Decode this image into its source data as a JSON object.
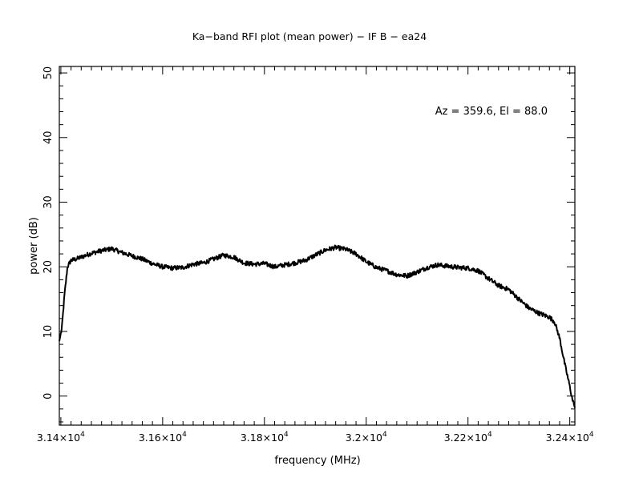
{
  "chart_data": {
    "type": "line",
    "title": "Ka−band RFI plot (mean power) − IF B − ea24",
    "annotation": "Az = 359.6, El = 88.0",
    "xlabel": "frequency (MHz)",
    "ylabel": "power (dB)",
    "xlim": [
      31397,
      32410
    ],
    "ylim": [
      -4.5,
      51
    ],
    "x_ticks": [
      {
        "value": 31400,
        "mantissa": "3.14",
        "exp": "4"
      },
      {
        "value": 31600,
        "mantissa": "3.16",
        "exp": "4"
      },
      {
        "value": 31800,
        "mantissa": "3.18",
        "exp": "4"
      },
      {
        "value": 32000,
        "mantissa": "3.2",
        "exp": "4"
      },
      {
        "value": 32200,
        "mantissa": "3.22",
        "exp": "4"
      },
      {
        "value": 32400,
        "mantissa": "3.24",
        "exp": "4"
      }
    ],
    "y_ticks": [
      0,
      10,
      20,
      30,
      40,
      50
    ],
    "line_color": "#000000",
    "series": [
      {
        "x": [
          31397,
          31402,
          31407,
          31413,
          31420,
          31430,
          31440,
          31460,
          31480,
          31500,
          31520,
          31540,
          31560,
          31580,
          31600,
          31620,
          31640,
          31660,
          31680,
          31700,
          31720,
          31740,
          31760,
          31780,
          31800,
          31820,
          31840,
          31860,
          31880,
          31900,
          31920,
          31940,
          31960,
          31980,
          32000,
          32020,
          32040,
          32060,
          32080,
          32100,
          32120,
          32140,
          32160,
          32180,
          32200,
          32220,
          32240,
          32260,
          32280,
          32300,
          32320,
          32340,
          32360,
          32370,
          32380,
          32390,
          32400,
          32405,
          32410
        ],
        "y": [
          8.5,
          10.5,
          15.5,
          20.0,
          21.0,
          21.2,
          21.5,
          22.1,
          22.5,
          22.8,
          22.2,
          21.7,
          21.2,
          20.5,
          20.0,
          19.8,
          19.9,
          20.4,
          20.6,
          21.2,
          21.8,
          21.5,
          20.6,
          20.4,
          20.5,
          20.0,
          20.3,
          20.6,
          21.0,
          21.8,
          22.6,
          23.0,
          22.7,
          22.0,
          20.8,
          19.9,
          19.4,
          18.8,
          18.6,
          19.2,
          19.9,
          20.3,
          20.1,
          19.9,
          19.8,
          19.4,
          18.2,
          17.1,
          16.5,
          15.0,
          13.6,
          12.8,
          12.2,
          11.5,
          9.0,
          5.0,
          1.5,
          -0.5,
          -1.8
        ]
      }
    ]
  }
}
